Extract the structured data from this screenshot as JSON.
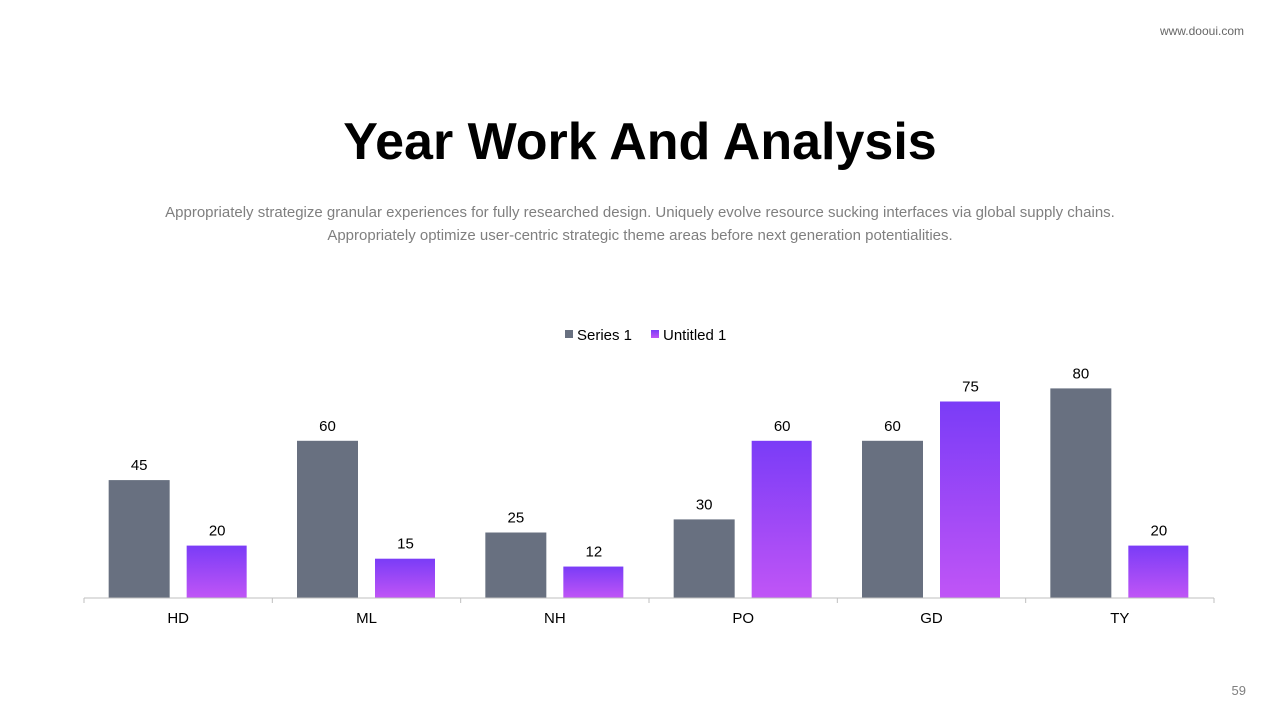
{
  "site_label": "www.dooui.com",
  "title": "Year Work And Analysis",
  "description_line1": "Appropriately strategize granular experiences for fully researched design. Uniquely evolve resource sucking interfaces via global supply chains.",
  "description_line2": "Appropriately optimize user-centric strategic theme areas before next generation potentialities.",
  "page_number": "59",
  "chart_data": {
    "type": "bar",
    "categories": [
      "HD",
      "ML",
      "NH",
      "PO",
      "GD",
      "TY"
    ],
    "series": [
      {
        "name": "Series 1",
        "values": [
          45,
          60,
          25,
          30,
          60,
          80
        ],
        "color": "#687080"
      },
      {
        "name": "Untitled 1",
        "values": [
          20,
          15,
          12,
          60,
          75,
          20
        ],
        "color_top": "#7a3cf7",
        "color_bottom": "#c055f6"
      }
    ],
    "ylim": [
      0,
      100
    ],
    "legend": "top-center",
    "grid": false,
    "data_labels": true
  }
}
